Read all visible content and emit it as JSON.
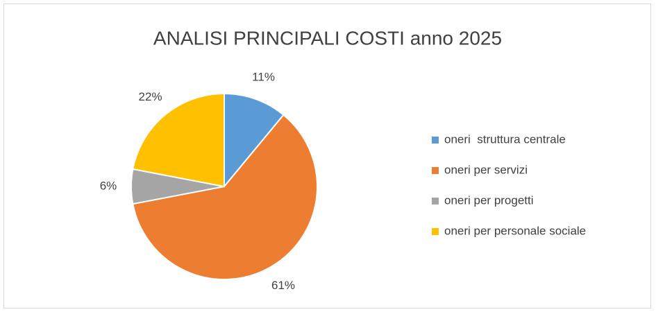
{
  "chart_data": {
    "type": "pie",
    "title": "ANALISI PRINCIPALI COSTI anno 2025",
    "categories": [
      "oneri  struttura centrale",
      "oneri per servizi",
      "oneri per progetti",
      "oneri per personale sociale"
    ],
    "values": [
      11,
      61,
      6,
      22
    ],
    "value_labels": [
      "11%",
      "61%",
      "6%",
      "22%"
    ],
    "colors": [
      "#5b9bd5",
      "#ed7d31",
      "#a5a5a5",
      "#ffc000"
    ],
    "legend": "right"
  }
}
